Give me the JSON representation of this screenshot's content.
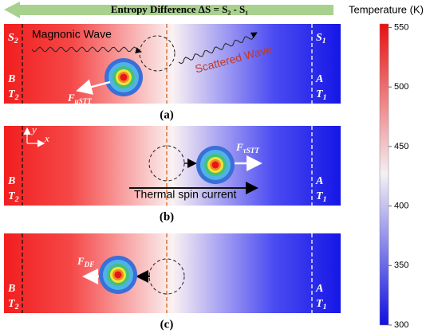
{
  "header": {
    "arrow_text": "Entropy Difference ΔS = S₂ - S₁"
  },
  "colorbar": {
    "label": "Temperature (K)",
    "range": [
      300,
      553
    ],
    "ticks": [
      300,
      350,
      400,
      450,
      500,
      550
    ]
  },
  "panels": [
    {
      "caption": "(a)",
      "left": {
        "entropy": [
          "S",
          "2"
        ],
        "side": "B",
        "temp": [
          "T",
          "2"
        ]
      },
      "right": {
        "entropy": [
          "S",
          "1"
        ],
        "side": "A",
        "temp": [
          "T",
          "1"
        ]
      },
      "wave": "Magnonic Wave",
      "scattered": "Scattered Wave",
      "force": [
        "F",
        "μSTT"
      ]
    },
    {
      "caption": "(b)",
      "left": {
        "side": "B",
        "temp": [
          "T",
          "2"
        ]
      },
      "right": {
        "side": "A",
        "temp": [
          "T",
          "1"
        ]
      },
      "axes": [
        "y",
        "x"
      ],
      "force": [
        "F",
        "τSTT"
      ],
      "current": "Thermal spin current"
    },
    {
      "caption": "(c)",
      "left": {
        "side": "B",
        "temp": [
          "T",
          "2"
        ]
      },
      "right": {
        "side": "A",
        "temp": [
          "T",
          "1"
        ]
      },
      "force": [
        "F",
        "DF"
      ]
    }
  ]
}
